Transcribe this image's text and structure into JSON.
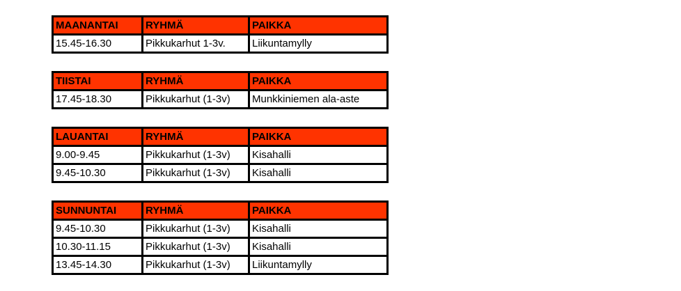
{
  "colors": {
    "header_bg": "#ff3300",
    "header_text": "#000000",
    "border": "#000000",
    "cell_bg": "#ffffff",
    "cell_text": "#000000",
    "page_bg": "#ffffff"
  },
  "tables": [
    {
      "id": "maanantai",
      "headers": [
        "MAANANTAI",
        "RYHMÄ",
        "PAIKKA"
      ],
      "rows": [
        [
          "15.45-16.30",
          "Pikkukarhut 1-3v.",
          "Liikuntamylly"
        ]
      ]
    },
    {
      "id": "tiistai",
      "headers": [
        "TIISTAI",
        "RYHMÄ",
        "PAIKKA"
      ],
      "rows": [
        [
          "17.45-18.30",
          "Pikkukarhut (1-3v)",
          "Munkkiniemen ala-aste"
        ]
      ]
    },
    {
      "id": "lauantai",
      "headers": [
        "LAUANTAI",
        "RYHMÄ",
        "PAIKKA"
      ],
      "rows": [
        [
          "9.00-9.45",
          "Pikkukarhut (1-3v)",
          "Kisahalli"
        ],
        [
          "9.45-10.30",
          "Pikkukarhut (1-3v)",
          "Kisahalli"
        ]
      ]
    },
    {
      "id": "sunnuntai",
      "headers": [
        "SUNNUNTAI",
        "RYHMÄ",
        "PAIKKA"
      ],
      "rows": [
        [
          "9.45-10.30",
          "Pikkukarhut (1-3v)",
          "Kisahalli"
        ],
        [
          "10.30-11.15",
          "Pikkukarhut (1-3v)",
          "Kisahalli"
        ],
        [
          "13.45-14.30",
          "Pikkukarhut (1-3v)",
          "Liikuntamylly"
        ]
      ]
    }
  ]
}
